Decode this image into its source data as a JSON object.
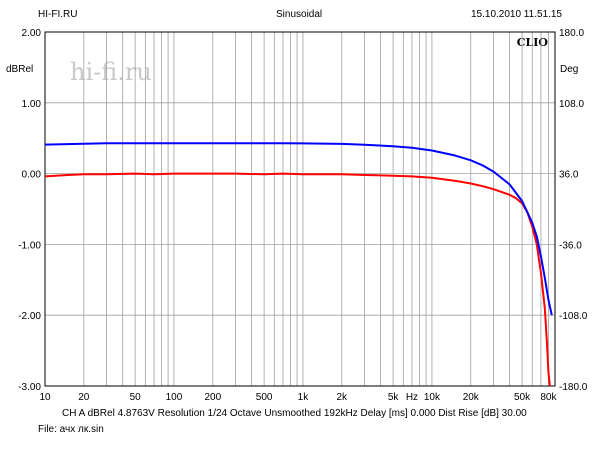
{
  "header": {
    "left": "HI-FI.RU",
    "center": "Sinusoidal",
    "right": "15.10.2010 11.51.15"
  },
  "watermark": "hi-fi.ru",
  "brand": "CLIO",
  "footer": {
    "settings": "CH A   dBRel 4.8763V   Resolution 1/24 Octave   Unsmoothed   192kHz   Delay [ms] 0.000   Dist Rise [dB] 30.00",
    "file": "File: ачх лк.sin"
  },
  "colors": {
    "magnitude": "#ff0000",
    "phase": "#0000ff",
    "grid": "#a0a0a0",
    "watermark": "#c8c8c8"
  },
  "chart_data": {
    "type": "line",
    "xlog": true,
    "xlim": [
      10,
      90000
    ],
    "x_ticks": [
      {
        "v": 10,
        "t": "10"
      },
      {
        "v": 20,
        "t": "20"
      },
      {
        "v": 50,
        "t": "50"
      },
      {
        "v": 100,
        "t": "100"
      },
      {
        "v": 200,
        "t": "200"
      },
      {
        "v": 500,
        "t": "500"
      },
      {
        "v": 1000,
        "t": "1k"
      },
      {
        "v": 2000,
        "t": "2k"
      },
      {
        "v": 5000,
        "t": "5k"
      },
      {
        "v": 7000,
        "t": "Hz"
      },
      {
        "v": 10000,
        "t": "10k"
      },
      {
        "v": 20000,
        "t": "20k"
      },
      {
        "v": 50000,
        "t": "50k"
      },
      {
        "v": 80000,
        "t": "80k"
      }
    ],
    "ylabel_left": "dBRel",
    "ylim_left": [
      -3.0,
      2.0
    ],
    "yticks_left": [
      "2.00",
      "1.00",
      "0.00",
      "-1.00",
      "-2.00",
      "-3.00"
    ],
    "ylabel_right": "Deg",
    "ylim_right": [
      -180,
      180
    ],
    "yticks_right": [
      "180.0",
      "108.0",
      "36.0",
      "-36.0",
      "-108.0",
      "-180.0"
    ],
    "grid": true,
    "series": [
      {
        "axis": "left",
        "color": "#ff0000",
        "points": [
          [
            10,
            -0.04
          ],
          [
            15,
            -0.02
          ],
          [
            20,
            -0.01
          ],
          [
            30,
            -0.01
          ],
          [
            50,
            0.0
          ],
          [
            70,
            -0.01
          ],
          [
            100,
            0.0
          ],
          [
            200,
            0.0
          ],
          [
            300,
            0.0
          ],
          [
            500,
            -0.01
          ],
          [
            700,
            0.0
          ],
          [
            1000,
            -0.01
          ],
          [
            2000,
            -0.01
          ],
          [
            3000,
            -0.02
          ],
          [
            5000,
            -0.03
          ],
          [
            7000,
            -0.04
          ],
          [
            10000,
            -0.06
          ],
          [
            15000,
            -0.1
          ],
          [
            20000,
            -0.14
          ],
          [
            25000,
            -0.18
          ],
          [
            30000,
            -0.22
          ],
          [
            40000,
            -0.3
          ],
          [
            45000,
            -0.35
          ],
          [
            50000,
            -0.42
          ],
          [
            55000,
            -0.55
          ],
          [
            60000,
            -0.75
          ],
          [
            65000,
            -1.0
          ],
          [
            70000,
            -1.4
          ],
          [
            75000,
            -1.9
          ],
          [
            78000,
            -2.4
          ],
          [
            80000,
            -2.8
          ],
          [
            82000,
            -3.0
          ]
        ]
      },
      {
        "axis": "right",
        "color": "#0000ff",
        "points": [
          [
            10,
            65.5
          ],
          [
            15,
            66.0
          ],
          [
            20,
            66.4
          ],
          [
            30,
            66.8
          ],
          [
            50,
            66.9
          ],
          [
            100,
            66.9
          ],
          [
            200,
            66.9
          ],
          [
            500,
            66.8
          ],
          [
            700,
            66.9
          ],
          [
            1000,
            66.7
          ],
          [
            2000,
            66.2
          ],
          [
            3000,
            65.4
          ],
          [
            5000,
            63.8
          ],
          [
            7000,
            62.2
          ],
          [
            10000,
            59.5
          ],
          [
            15000,
            54.5
          ],
          [
            20000,
            49.5
          ],
          [
            25000,
            44.0
          ],
          [
            30000,
            38.0
          ],
          [
            40000,
            25.0
          ],
          [
            50000,
            8.0
          ],
          [
            60000,
            -14.0
          ],
          [
            65000,
            -28.0
          ],
          [
            70000,
            -48.0
          ],
          [
            75000,
            -70.0
          ],
          [
            80000,
            -92.0
          ],
          [
            83000,
            -102.0
          ],
          [
            85000,
            -108.0
          ]
        ]
      }
    ]
  }
}
